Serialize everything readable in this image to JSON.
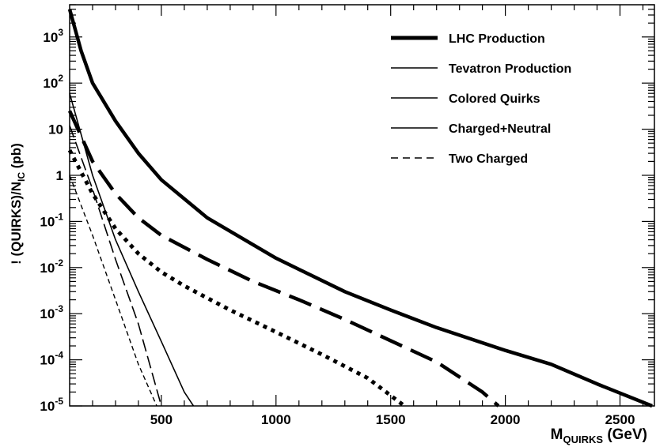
{
  "chart_data": {
    "type": "line",
    "xlabel": {
      "main": "M",
      "sub": "QUIRKS",
      "unit": " (GeV)"
    },
    "ylabel": {
      "pre": "! (QUIRKS)/N",
      "sub": "IC",
      "post": " (pb)"
    },
    "xlim": [
      100,
      2650
    ],
    "ylim": [
      1e-05,
      5000
    ],
    "yscale": "log",
    "grid": false,
    "legend_position": "top-right",
    "x_ticks": [
      {
        "value": 500,
        "label": "500"
      },
      {
        "value": 1000,
        "label": "1000"
      },
      {
        "value": 1500,
        "label": "1500"
      },
      {
        "value": 2000,
        "label": "2000"
      },
      {
        "value": 2500,
        "label": "2500"
      }
    ],
    "y_ticks": [
      {
        "value": 1e-05,
        "base": "10",
        "exp": "-5"
      },
      {
        "value": 0.0001,
        "base": "10",
        "exp": "-4"
      },
      {
        "value": 0.001,
        "base": "10",
        "exp": "-3"
      },
      {
        "value": 0.01,
        "base": "10",
        "exp": "-2"
      },
      {
        "value": 0.1,
        "base": "10",
        "exp": "-1"
      },
      {
        "value": 1,
        "base": "1",
        "exp": ""
      },
      {
        "value": 10,
        "base": "10",
        "exp": ""
      },
      {
        "value": 100,
        "base": "10",
        "exp": "2"
      },
      {
        "value": 1000,
        "base": "10",
        "exp": "3"
      }
    ],
    "legend": [
      {
        "label": "LHC Production",
        "style": "thick"
      },
      {
        "label": "Tevatron Production",
        "style": "thin"
      },
      {
        "label": "Colored Quirks",
        "style": "thin"
      },
      {
        "label": "Charged+Neutral",
        "style": "thin"
      },
      {
        "label": "Two Charged",
        "style": "dashed"
      }
    ],
    "series": [
      {
        "style": "thick-solid",
        "x": [
          100,
          150,
          200,
          300,
          400,
          500,
          700,
          1000,
          1300,
          1500,
          1700,
          2000,
          2200,
          2400,
          2600,
          2640
        ],
        "y": [
          4000,
          500,
          100,
          15,
          3,
          0.8,
          0.12,
          0.016,
          0.003,
          0.0012,
          0.0005,
          0.00016,
          8e-05,
          3e-05,
          1.2e-05,
          1e-05
        ]
      },
      {
        "style": "thick-longdash",
        "x": [
          100,
          200,
          300,
          400,
          500,
          700,
          900,
          1100,
          1300,
          1500,
          1700,
          1900,
          1970
        ],
        "y": [
          25,
          2,
          0.4,
          0.12,
          0.05,
          0.015,
          0.005,
          0.002,
          0.00075,
          0.00026,
          9e-05,
          2e-05,
          1e-05
        ]
      },
      {
        "style": "thick-dotted",
        "x": [
          100,
          200,
          300,
          400,
          500,
          600,
          800,
          1000,
          1200,
          1400,
          1560
        ],
        "y": [
          3.5,
          0.4,
          0.07,
          0.02,
          0.008,
          0.004,
          0.0012,
          0.0004,
          0.00013,
          4e-05,
          1e-05
        ]
      },
      {
        "style": "thin-solid",
        "x": [
          100,
          200,
          300,
          400,
          500,
          600,
          640
        ],
        "y": [
          60,
          1,
          0.04,
          0.003,
          0.00025,
          2e-05,
          1e-05
        ]
      },
      {
        "style": "thin-longdash",
        "x": [
          100,
          200,
          300,
          400,
          500
        ],
        "y": [
          12,
          0.5,
          0.015,
          0.0006,
          1e-05
        ]
      },
      {
        "style": "thin-shortdash",
        "x": [
          100,
          200,
          300,
          400,
          480
        ],
        "y": [
          1,
          0.05,
          0.002,
          8e-05,
          1e-05
        ]
      }
    ]
  }
}
